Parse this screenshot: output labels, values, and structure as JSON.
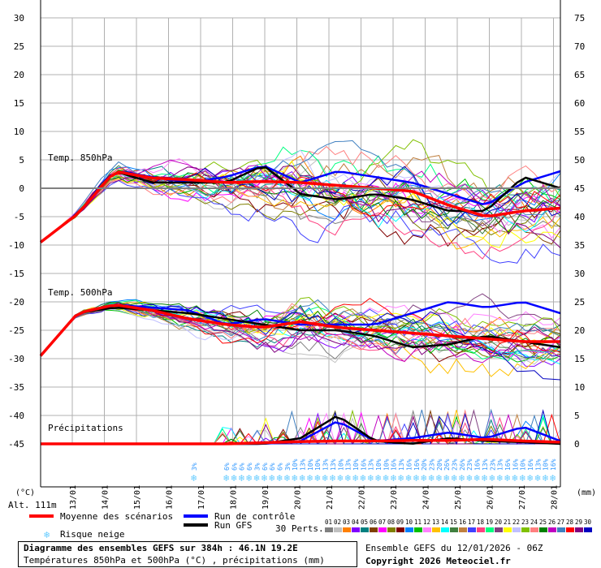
{
  "chart_data": {
    "type": "line",
    "title": "Diagramme des ensembles GEFS sur 384h : 46.1N 19.2E",
    "subtitle": "Températures 850hPa et 500hPa (°C) , précipitations (mm)",
    "run_info": "Ensemble GEFS du 12/01/2026 - 06Z",
    "copyright": "Copyright 2026 Meteociel.fr",
    "left_unit": "(°C)",
    "right_unit": "(mm)",
    "altitude": "Alt. 111m",
    "left_ticks": [
      "30",
      "25",
      "20",
      "15",
      "10",
      "5",
      "0",
      "-5",
      "-10",
      "-15",
      "-20",
      "-25",
      "-30",
      "-35",
      "-40",
      "-45"
    ],
    "right_ticks": [
      "75",
      "70",
      "65",
      "60",
      "55",
      "50",
      "45",
      "40",
      "35",
      "30",
      "25",
      "20",
      "15",
      "10",
      "5",
      "0"
    ],
    "x_labels": [
      "13/01",
      "14/01",
      "15/01",
      "16/01",
      "17/01",
      "18/01",
      "19/01",
      "20/01",
      "21/01",
      "22/01",
      "23/01",
      "24/01",
      "25/01",
      "26/01",
      "27/01",
      "28/01"
    ],
    "panel_labels": {
      "t850": "Temp. 850hPa",
      "t500": "Temp. 500hPa",
      "precip": "Précipitations"
    },
    "legend": {
      "mean": "Moyenne des scénarios",
      "control": "Run de contrôle",
      "gfs": "Run GFS",
      "snow": "Risque neige",
      "perts": "30 Perts.",
      "pert_numbers": [
        "01",
        "02",
        "03",
        "04",
        "05",
        "06",
        "07",
        "08",
        "09",
        "10",
        "11",
        "12",
        "13",
        "14",
        "15",
        "16",
        "17",
        "18",
        "19",
        "20",
        "21",
        "22",
        "23",
        "24",
        "25",
        "26",
        "27",
        "28",
        "29",
        "30"
      ]
    },
    "colors": {
      "mean": "#ff0000",
      "control": "#0000ff",
      "gfs": "#000000",
      "snow": "#66ccff",
      "perts": [
        "#808080",
        "#c0c0c0",
        "#ff8000",
        "#8000ff",
        "#008080",
        "#804000",
        "#ff00ff",
        "#808000",
        "#800000",
        "#0080ff",
        "#00c000",
        "#ff80ff",
        "#ffc000",
        "#00ffff",
        "#408040",
        "#c08040",
        "#4040ff",
        "#ff4080",
        "#00ff80",
        "#804080",
        "#ffff00",
        "#c0c0ff",
        "#80c000",
        "#ff8080",
        "#008000",
        "#c000c0",
        "#4080c0",
        "#ff0000",
        "#800080",
        "#0000c0"
      ]
    },
    "snow_risk": {
      "labels": [
        "3%",
        "6%",
        "6%",
        "6%",
        "6%",
        "3%",
        "6%",
        "6%",
        "6%",
        "3%",
        "10%",
        "13%",
        "10%",
        "10%",
        "13%",
        "13%",
        "10%",
        "13%",
        "10%",
        "16%",
        "13%",
        "10%",
        "10%",
        "16%",
        "13%",
        "16%",
        "16%",
        "20%",
        "23%",
        "20%",
        "26%",
        "23%",
        "26%",
        "23%",
        "16%",
        "13%",
        "23%",
        "13%",
        "16%",
        "16%",
        "10%",
        "16%",
        "13%",
        "10%",
        "16%"
      ]
    },
    "series": [
      {
        "name": "Moyenne des scénarios",
        "t850": [
          -9.5,
          -4.5,
          3,
          1.8,
          1.5,
          1,
          1.2,
          1,
          0.5,
          0,
          -0.5,
          -3,
          -5,
          -4,
          -3.5
        ],
        "t500": [
          -29.5,
          -22,
          -20.5,
          -21.5,
          -23,
          -24,
          -24.5,
          -23.5,
          -24.5,
          -25,
          -25.5,
          -26,
          -26.5,
          -27,
          -27
        ],
        "precip": [
          0,
          0,
          0,
          0,
          0,
          0,
          0.2,
          0.4,
          0.5,
          0.5,
          0.6,
          0.6,
          0.8,
          0.5,
          0.3
        ]
      },
      {
        "name": "Run de contrôle",
        "t850": [
          -9.5,
          -4.5,
          3,
          2,
          1,
          2,
          4,
          1,
          3,
          2,
          1,
          -1,
          -3,
          1,
          3
        ],
        "t500": [
          -29.5,
          -22,
          -20.5,
          -21,
          -21.5,
          -24,
          -23,
          -24,
          -24,
          -24,
          -22,
          -20,
          -21,
          -20,
          -22
        ],
        "precip": [
          0,
          0,
          0,
          0,
          0,
          0,
          0,
          0.5,
          4,
          0.5,
          1,
          2,
          1,
          3,
          0.5
        ]
      },
      {
        "name": "Run GFS",
        "t850": [
          -9.5,
          -4.5,
          3,
          1,
          1,
          1,
          4,
          -1,
          -2,
          -1,
          -2,
          -4,
          -4,
          2,
          0
        ],
        "t500": [
          -29.5,
          -22,
          -21,
          -21.5,
          -22,
          -23,
          -24,
          -25,
          -25,
          -26,
          -28,
          -27.5,
          -26,
          -27,
          -28
        ],
        "precip": [
          0,
          0,
          0,
          0,
          0,
          0,
          0,
          1,
          5,
          0.5,
          0,
          1,
          0.5,
          0.3,
          0
        ]
      }
    ]
  }
}
